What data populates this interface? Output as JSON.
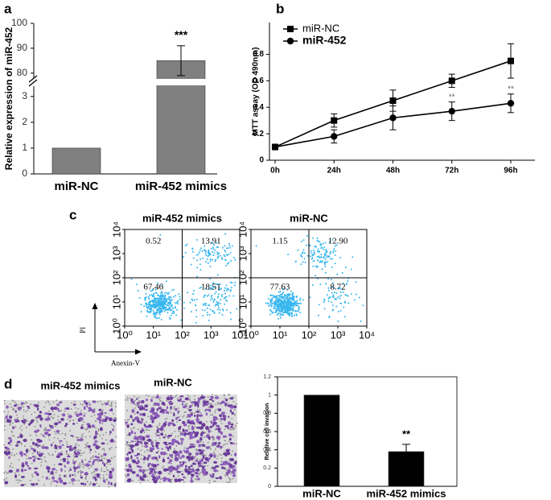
{
  "chart_data": [
    {
      "label": "a",
      "type": "bar",
      "categories": [
        "miR-NC",
        "miR-452 mimics"
      ],
      "values": [
        1,
        85
      ],
      "errors": [
        0,
        6
      ],
      "color": "#808080",
      "ylim": [
        0,
        100
      ],
      "ybreak": [
        3.4,
        78
      ],
      "yticks": [
        0,
        1,
        2,
        3,
        80,
        90,
        100
      ],
      "y_label": "Relative expression of miR-452",
      "annotations": [
        {
          "x": "miR-452 mimics",
          "text": "***"
        }
      ]
    },
    {
      "label": "b",
      "type": "line",
      "categories": [
        "0h",
        "24h",
        "48h",
        "72h",
        "96h"
      ],
      "series": [
        {
          "name": "miR-NC",
          "color": "#000000",
          "marker": "square",
          "values": [
            0.1,
            0.3,
            0.45,
            0.6,
            0.75
          ],
          "errors": [
            0.01,
            0.05,
            0.08,
            0.05,
            0.13
          ]
        },
        {
          "name": "miR-452",
          "color": "#000000",
          "marker": "circle",
          "values": [
            0.1,
            0.18,
            0.32,
            0.37,
            0.43
          ],
          "errors": [
            0.01,
            0.05,
            0.09,
            0.07,
            0.07
          ]
        }
      ],
      "ylim": [
        0,
        1.04
      ],
      "yticks": [
        0,
        0.2,
        0.4,
        0.6,
        0.8
      ],
      "y_label": "MTT assay (OD 490nm)",
      "legend": "upper-left",
      "annotations": [
        {
          "x": "72h",
          "series": 1,
          "text": "**"
        },
        {
          "x": "96h",
          "series": 1,
          "text": "**"
        }
      ]
    },
    {
      "type": "bar",
      "categories": [
        "miR-NC",
        "miR-452 mimics"
      ],
      "values": [
        1,
        0.38
      ],
      "errors": [
        0,
        0.08
      ],
      "color": "#000000",
      "ylim": [
        0,
        1.2
      ],
      "yticks": [
        0,
        0.2,
        0.4,
        0.6,
        0.8,
        1,
        1.2
      ],
      "y_label": "Relative cell invasion",
      "annotations": [
        {
          "x": "miR-452 mimics",
          "text": "**"
        }
      ]
    }
  ],
  "flow_cytometry": {
    "label": "c",
    "x_label": "Anexin-V",
    "y_label": "PI",
    "xscale": "log",
    "xlim": [
      1,
      10000
    ],
    "ylim": [
      1,
      10000
    ],
    "gate": [
      100,
      100
    ],
    "xticks": [
      {
        "value": 1,
        "label": "10⁰"
      },
      {
        "value": 10,
        "label": "10¹"
      },
      {
        "value": 100,
        "label": "10²"
      },
      {
        "value": 1000,
        "label": "10³"
      },
      {
        "value": 10000,
        "label": "10⁴"
      }
    ],
    "yticks": [
      {
        "value": 1,
        "label": "10⁰"
      },
      {
        "value": 10,
        "label": "10¹"
      },
      {
        "value": 100,
        "label": "10²"
      },
      {
        "value": 1000,
        "label": "10³"
      },
      {
        "value": 10000,
        "label": "10⁴"
      }
    ],
    "plots": [
      {
        "title": "miR-452 mimics",
        "quadrants": [
          "0.52",
          "13.91",
          "67.46",
          "18.51"
        ]
      },
      {
        "title": "miR-NC",
        "quadrants": [
          "1.15",
          "12.90",
          "77.63",
          "8.72"
        ]
      }
    ]
  },
  "micrographs": {
    "label": "d",
    "titles": [
      "miR-452 mimics",
      "miR-NC"
    ]
  }
}
